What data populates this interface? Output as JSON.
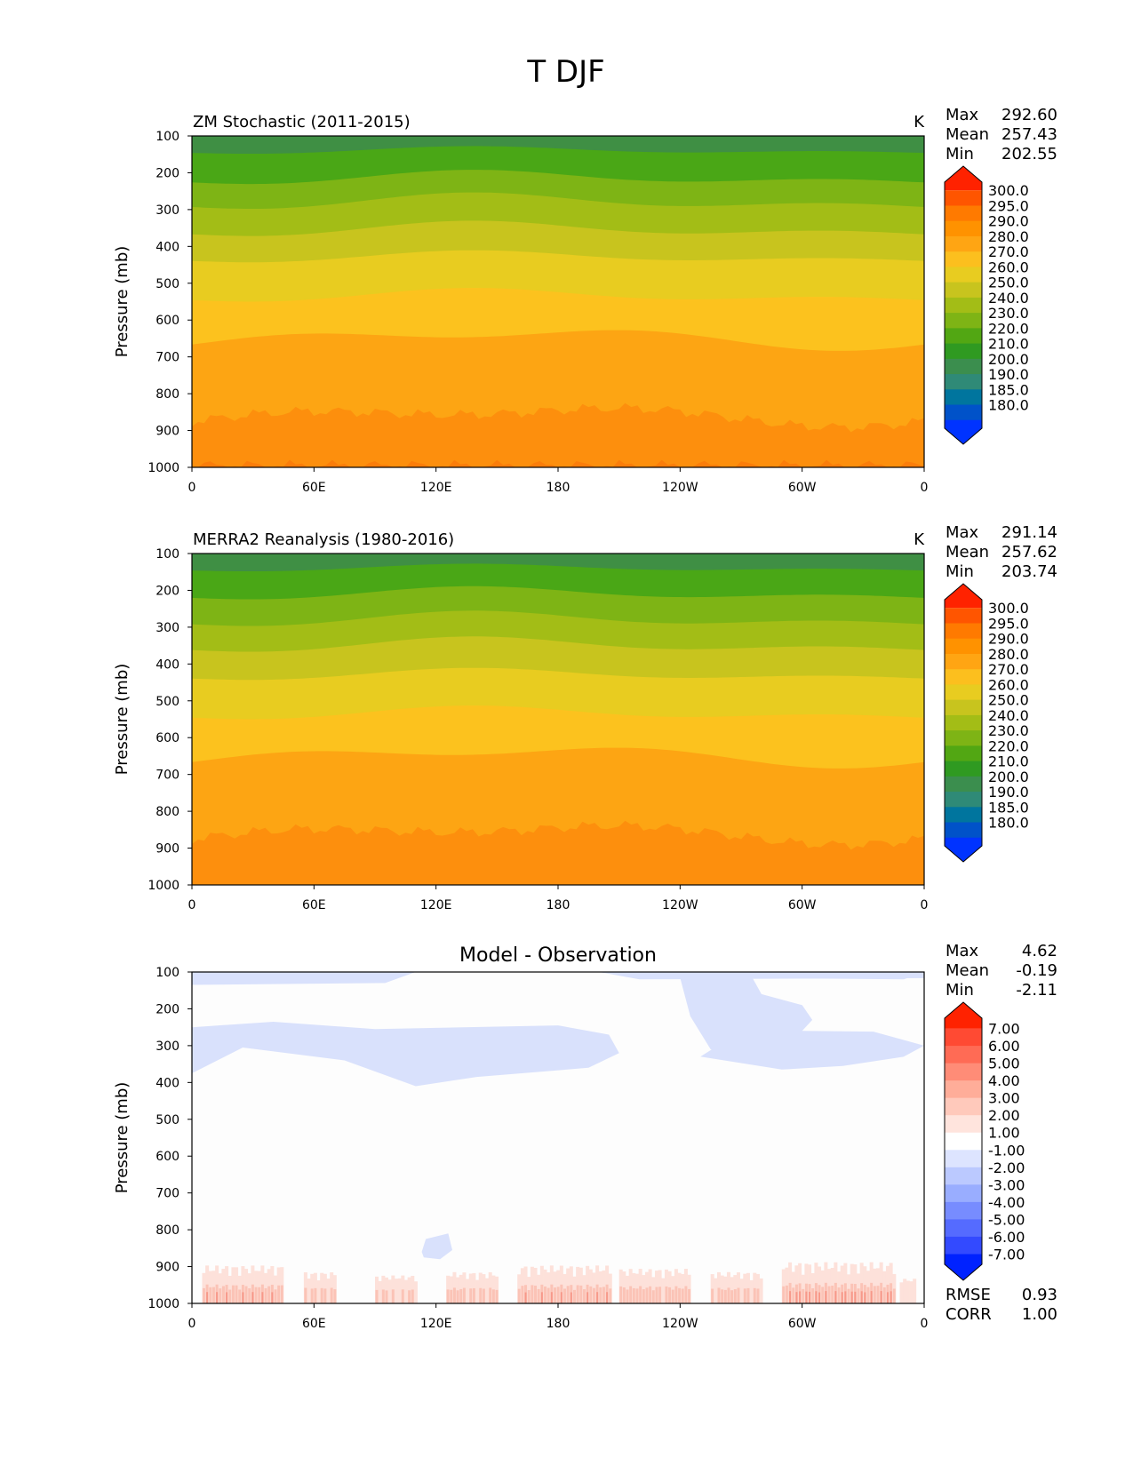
{
  "figure": {
    "title": "T DJF"
  },
  "chart_data": [
    {
      "type": "heatmap",
      "title": "ZM Stochastic (2011-2015)",
      "units": "K",
      "ylabel": "Pressure (mb)",
      "xlabel": "",
      "x_ticks": [
        "0",
        "60E",
        "120E",
        "180",
        "120W",
        "60W",
        "0"
      ],
      "y_ticks": [
        "100",
        "200",
        "300",
        "400",
        "500",
        "600",
        "700",
        "800",
        "900",
        "1000"
      ],
      "xlim": [
        0,
        360
      ],
      "ylim": [
        1000,
        100
      ],
      "stats": [
        {
          "label": "Max",
          "value": "292.60"
        },
        {
          "label": "Mean",
          "value": "257.43"
        },
        {
          "label": "Min",
          "value": "202.55"
        }
      ],
      "colorbar": {
        "labels": [
          "300.0",
          "295.0",
          "290.0",
          "280.0",
          "270.0",
          "260.0",
          "250.0",
          "240.0",
          "230.0",
          "220.0",
          "210.0",
          "200.0",
          "190.0",
          "185.0",
          "180.0"
        ],
        "colors": [
          "#ff2200",
          "#ff5500",
          "#ff7a00",
          "#ff9200",
          "#ffa513",
          "#fcbf1e",
          "#e8cc20",
          "#c8c41e",
          "#a3bd16",
          "#7eb415",
          "#52a713",
          "#2f9a21",
          "#3b8e4e",
          "#2f8a77",
          "#00759e",
          "#0052c9",
          "#0033ff"
        ]
      },
      "bands": [
        {
          "top": 100,
          "color": "#3f8f44",
          "wave": 0,
          "seed": 0
        },
        {
          "top": 140,
          "color": "#4aa716",
          "wave": 14,
          "seed": 0
        },
        {
          "top": 215,
          "color": "#7eb415",
          "wave": 26,
          "seed": 0
        },
        {
          "top": 280,
          "color": "#a3bd16",
          "wave": 30,
          "seed": 0
        },
        {
          "top": 355,
          "color": "#c8c41e",
          "wave": 28,
          "seed": 0
        },
        {
          "top": 430,
          "color": "#e8cc20",
          "wave": 22,
          "seed": 0
        },
        {
          "top": 535,
          "color": "#fcc21e",
          "wave": 25,
          "seed": 0
        },
        {
          "top": 650,
          "color": "#fda513",
          "wave": -38,
          "seed": 0
        },
        {
          "top": 860,
          "color": "#fd8f0d",
          "wave": -35,
          "seed": 1
        },
        {
          "top": 995,
          "color": "#fb7d0a",
          "wave": 0,
          "seed": 2
        }
      ]
    },
    {
      "type": "heatmap",
      "title": "MERRA2 Reanalysis (1980-2016)",
      "units": "K",
      "ylabel": "Pressure (mb)",
      "xlabel": "",
      "x_ticks": [
        "0",
        "60E",
        "120E",
        "180",
        "120W",
        "60W",
        "0"
      ],
      "y_ticks": [
        "100",
        "200",
        "300",
        "400",
        "500",
        "600",
        "700",
        "800",
        "900",
        "1000"
      ],
      "xlim": [
        0,
        360
      ],
      "ylim": [
        1000,
        100
      ],
      "stats": [
        {
          "label": "Max",
          "value": "291.14"
        },
        {
          "label": "Mean",
          "value": "257.62"
        },
        {
          "label": "Min",
          "value": "203.74"
        }
      ],
      "colorbar": {
        "labels": [
          "300.0",
          "295.0",
          "290.0",
          "280.0",
          "270.0",
          "260.0",
          "250.0",
          "240.0",
          "230.0",
          "220.0",
          "210.0",
          "200.0",
          "190.0",
          "185.0",
          "180.0"
        ],
        "colors": [
          "#ff2200",
          "#ff5500",
          "#ff7a00",
          "#ff9200",
          "#ffa513",
          "#fcbf1e",
          "#e8cc20",
          "#c8c41e",
          "#a3bd16",
          "#7eb415",
          "#52a713",
          "#2f9a21",
          "#3b8e4e",
          "#2f8a77",
          "#00759e",
          "#0052c9",
          "#0033ff"
        ]
      },
      "bands": [
        {
          "top": 100,
          "color": "#3f8f44",
          "wave": 0,
          "seed": 0
        },
        {
          "top": 140,
          "color": "#4aa716",
          "wave": 14,
          "seed": 0
        },
        {
          "top": 210,
          "color": "#7eb415",
          "wave": 24,
          "seed": 0
        },
        {
          "top": 280,
          "color": "#a3bd16",
          "wave": 28,
          "seed": 0
        },
        {
          "top": 350,
          "color": "#c8c41e",
          "wave": 28,
          "seed": 0
        },
        {
          "top": 430,
          "color": "#e8cc20",
          "wave": 22,
          "seed": 0
        },
        {
          "top": 535,
          "color": "#fcc21e",
          "wave": 25,
          "seed": 0
        },
        {
          "top": 650,
          "color": "#fda513",
          "wave": -38,
          "seed": 0
        },
        {
          "top": 860,
          "color": "#fd8f0d",
          "wave": -35,
          "seed": 1
        }
      ]
    },
    {
      "type": "heatmap",
      "title": "Model - Observation",
      "units": "",
      "ylabel": "Pressure (mb)",
      "xlabel": "",
      "x_ticks": [
        "0",
        "60E",
        "120E",
        "180",
        "120W",
        "60W",
        "0"
      ],
      "y_ticks": [
        "100",
        "200",
        "300",
        "400",
        "500",
        "600",
        "700",
        "800",
        "900",
        "1000"
      ],
      "xlim": [
        0,
        360
      ],
      "ylim": [
        1000,
        100
      ],
      "stats": [
        {
          "label": "Max",
          "value": "4.62"
        },
        {
          "label": "Mean",
          "value": "-0.19"
        },
        {
          "label": "Min",
          "value": "-2.11"
        }
      ],
      "extra_stats": [
        {
          "label": "RMSE",
          "value": "0.93"
        },
        {
          "label": "CORR",
          "value": "1.00"
        }
      ],
      "colorbar": {
        "labels": [
          "7.00",
          "6.00",
          "5.00",
          "4.00",
          "3.00",
          "2.00",
          "1.00",
          "-1.00",
          "-2.00",
          "-3.00",
          "-4.00",
          "-5.00",
          "-6.00",
          "-7.00"
        ],
        "colors": [
          "#ff2200",
          "#ff4a33",
          "#ff6b55",
          "#ff8c77",
          "#ffad99",
          "#ffc9bb",
          "#ffe4dd",
          "#ffffff",
          "#dde4ff",
          "#bbc9ff",
          "#99adff",
          "#778cff",
          "#556bff",
          "#334aff",
          "#0022ff"
        ]
      },
      "background": "#fdfdfd",
      "negative_color": "#d9e1fc",
      "positive_colors": [
        "#fde1da",
        "#fbc3b6",
        "#f7998a",
        "#f17a68"
      ]
    }
  ]
}
